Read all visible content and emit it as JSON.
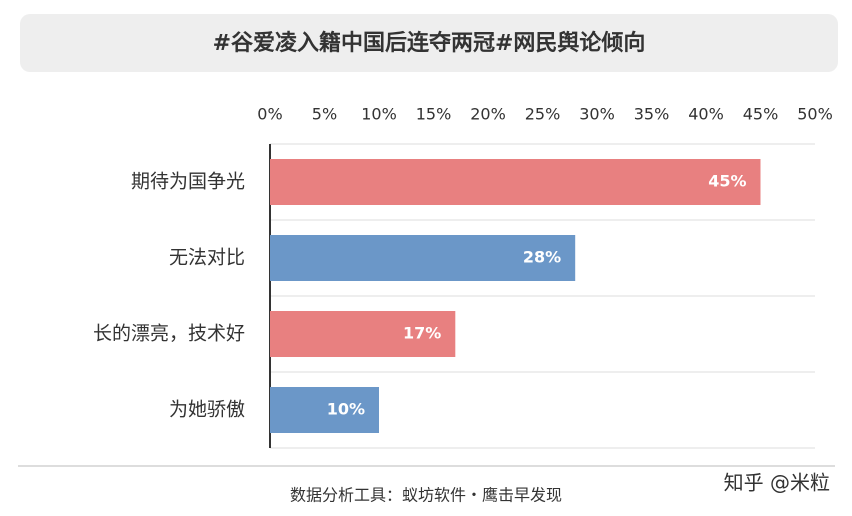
{
  "chart_data": {
    "type": "barh",
    "title": "#谷爱凌入籍中国后连夺两冠#网民舆论倾向",
    "categories": [
      "期待为国争光",
      "无法对比",
      "长的漂亮，技术好",
      "为她骄傲"
    ],
    "values": [
      45,
      28,
      17,
      10
    ],
    "value_labels": [
      "45%",
      "28%",
      "17%",
      "10%"
    ],
    "colors": [
      "#e88080",
      "#6b97c8",
      "#e88080",
      "#6b97c8"
    ],
    "xlim": [
      0,
      50
    ],
    "xticks": [
      {
        "value": 0,
        "label": "0%"
      },
      {
        "value": 5,
        "label": "5%"
      },
      {
        "value": 10,
        "label": "10%"
      },
      {
        "value": 15,
        "label": "15%"
      },
      {
        "value": 20,
        "label": "20%"
      },
      {
        "value": 25,
        "label": "25%"
      },
      {
        "value": 30,
        "label": "30%"
      },
      {
        "value": 35,
        "label": "35%"
      },
      {
        "value": 40,
        "label": "40%"
      },
      {
        "value": 45,
        "label": "45%"
      },
      {
        "value": 50,
        "label": "50%"
      }
    ],
    "footer": "数据分析工具：蚁坊软件・鹰击早发现",
    "watermark": "知乎 @米粒"
  }
}
